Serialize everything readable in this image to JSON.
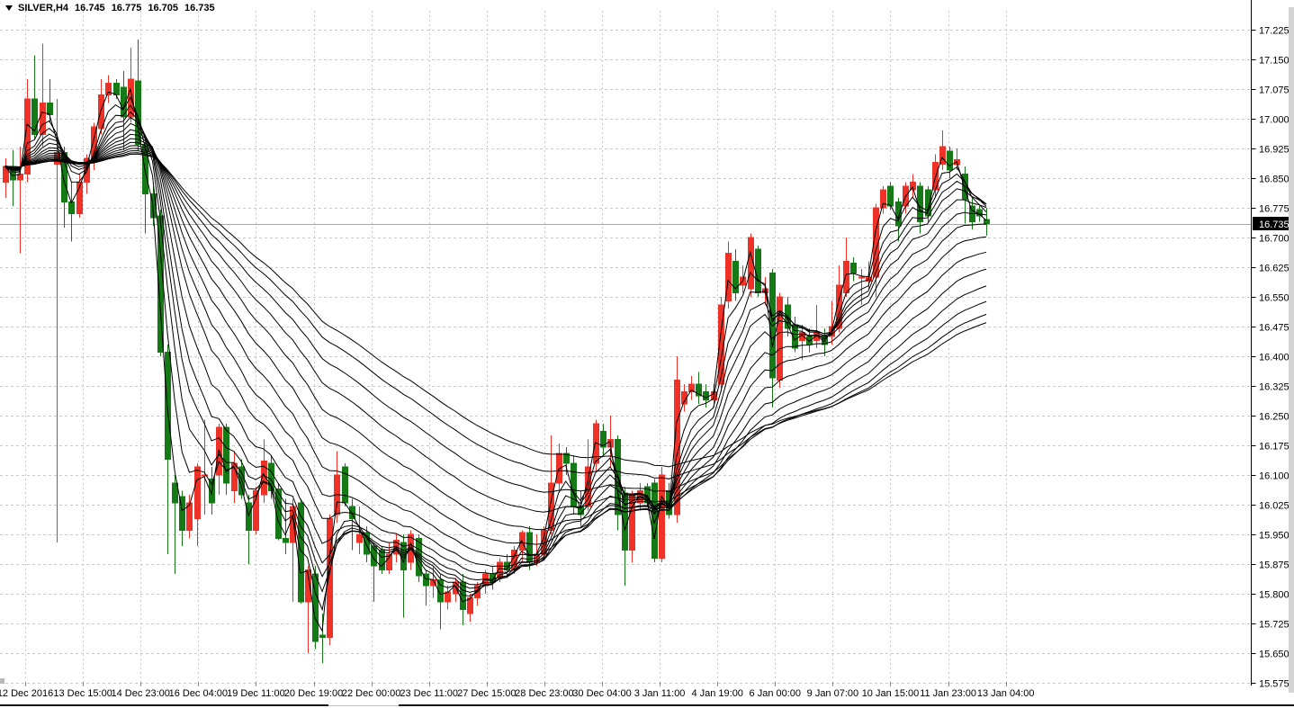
{
  "title": {
    "symbol": "SILVER,H4",
    "open": "16.745",
    "high": "16.775",
    "low": "16.705",
    "close": "16.735"
  },
  "chart_data": {
    "type": "candlestick",
    "symbol": "SILVER",
    "timeframe": "H4",
    "title": "SILVER,H4 16.745 16.775 16.705 16.735",
    "grid": "dotted",
    "legend_position": "none",
    "colors": {
      "bull_candle": "#ef3228",
      "bear_candle": "#157a15",
      "ma_line": "#000000",
      "grid": "#c9c9c9",
      "current_price_line": "#a8a8a8",
      "badge_bg": "#000000",
      "badge_text": "#ffffff",
      "axis_text": "#000000"
    },
    "y_axis": {
      "min": 15.575,
      "max": 17.225,
      "step": 0.075,
      "ticks": [
        "17.225",
        "17.150",
        "17.075",
        "17.000",
        "16.925",
        "16.850",
        "16.775",
        "16.700",
        "16.625",
        "16.550",
        "16.475",
        "16.400",
        "16.325",
        "16.250",
        "16.175",
        "16.100",
        "16.025",
        "15.950",
        "15.875",
        "15.800",
        "15.725",
        "15.650",
        "15.575"
      ],
      "current_price": "16.735"
    },
    "x_axis": {
      "labels": [
        "12 Dec 2016",
        "13 Dec 15:00",
        "14 Dec 23:00",
        "16 Dec 04:00",
        "19 Dec 11:00",
        "20 Dec 19:00",
        "22 Dec 00:00",
        "23 Dec 11:00",
        "27 Dec 15:00",
        "28 Dec 23:00",
        "30 Dec 04:00",
        "3 Jan 11:00",
        "4 Jan 19:00",
        "6 Jan 00:00",
        "9 Jan 07:00",
        "10 Jan 15:00",
        "11 Jan 23:00",
        "13 Jan 04:00"
      ]
    },
    "ma_overlay": {
      "kind": "ema_ribbon",
      "periods": [
        2,
        4,
        6,
        8,
        10,
        13,
        17,
        21,
        26,
        32,
        39,
        47,
        56,
        66,
        75
      ]
    },
    "candles": [
      [
        16.84,
        16.9,
        16.8,
        16.88
      ],
      [
        16.88,
        16.92,
        16.78,
        16.845
      ],
      [
        16.845,
        16.93,
        16.66,
        16.86
      ],
      [
        16.86,
        17.1,
        16.84,
        17.05
      ],
      [
        17.05,
        17.16,
        16.95,
        16.96
      ],
      [
        16.96,
        17.19,
        16.93,
        17.04
      ],
      [
        17.04,
        17.1,
        16.99,
        17.01
      ],
      [
        16.885,
        17.05,
        15.93,
        16.915
      ],
      [
        16.915,
        16.93,
        16.725,
        16.79
      ],
      [
        16.79,
        16.84,
        16.69,
        16.76
      ],
      [
        16.76,
        16.86,
        16.75,
        16.84
      ],
      [
        16.84,
        16.91,
        16.81,
        16.9
      ],
      [
        16.89,
        16.99,
        16.87,
        16.98
      ],
      [
        16.975,
        17.1,
        16.96,
        17.06
      ],
      [
        17.06,
        17.11,
        17.04,
        17.09
      ],
      [
        17.09,
        17.1,
        17.05,
        17.06
      ],
      [
        17.08,
        17.12,
        16.92,
        17.005
      ],
      [
        17.005,
        17.18,
        16.99,
        17.1
      ],
      [
        17.095,
        17.2,
        16.92,
        16.935
      ],
      [
        16.935,
        16.95,
        16.71,
        16.81
      ],
      [
        16.81,
        16.83,
        16.73,
        16.75
      ],
      [
        16.755,
        16.77,
        16.4,
        16.41
      ],
      [
        16.41,
        16.43,
        15.9,
        16.14
      ],
      [
        16.08,
        16.1,
        15.85,
        16.03
      ],
      [
        16.045,
        16.06,
        15.92,
        15.96
      ],
      [
        15.96,
        16.05,
        15.94,
        16.03
      ],
      [
        15.99,
        16.13,
        15.92,
        16.12
      ],
      [
        16.1,
        16.24,
        16.0,
        16.1
      ],
      [
        16.09,
        16.12,
        16.0,
        16.03
      ],
      [
        16.1,
        16.23,
        16.05,
        16.22
      ],
      [
        16.22,
        16.23,
        16.05,
        16.08
      ],
      [
        16.06,
        16.16,
        16.03,
        16.13
      ],
      [
        16.12,
        16.14,
        16.04,
        16.05
      ],
      [
        16.03,
        16.05,
        15.875,
        15.96
      ],
      [
        15.96,
        16.07,
        15.95,
        16.06
      ],
      [
        16.05,
        16.19,
        16.03,
        16.135
      ],
      [
        16.13,
        16.15,
        16.04,
        16.06
      ],
      [
        16.065,
        16.08,
        15.935,
        15.94
      ],
      [
        15.94,
        16.04,
        15.9,
        15.93
      ],
      [
        15.93,
        16.04,
        15.78,
        16.02
      ],
      [
        16.03,
        16.04,
        15.775,
        15.78
      ],
      [
        15.78,
        15.87,
        15.65,
        15.86
      ],
      [
        15.85,
        15.87,
        15.66,
        15.68
      ],
      [
        15.695,
        15.75,
        15.625,
        15.69
      ],
      [
        15.69,
        16.0,
        15.67,
        15.99
      ],
      [
        16.0,
        16.16,
        15.98,
        16.1
      ],
      [
        16.12,
        16.13,
        16.02,
        16.03
      ],
      [
        16.02,
        16.04,
        15.91,
        15.99
      ],
      [
        15.93,
        16.02,
        15.9,
        15.95
      ],
      [
        15.955,
        15.97,
        15.88,
        15.9
      ],
      [
        15.92,
        15.93,
        15.78,
        15.87
      ],
      [
        15.91,
        15.92,
        15.85,
        15.86
      ],
      [
        15.86,
        15.93,
        15.85,
        15.9
      ],
      [
        15.9,
        15.95,
        15.88,
        15.935
      ],
      [
        15.93,
        15.95,
        15.74,
        15.86
      ],
      [
        15.88,
        15.96,
        15.86,
        15.95
      ],
      [
        15.94,
        15.95,
        15.83,
        15.845
      ],
      [
        15.85,
        15.86,
        15.77,
        15.82
      ],
      [
        15.82,
        15.87,
        15.79,
        15.835
      ],
      [
        15.835,
        15.85,
        15.71,
        15.78
      ],
      [
        15.78,
        15.82,
        15.76,
        15.805
      ],
      [
        15.8,
        15.84,
        15.78,
        15.83
      ],
      [
        15.83,
        15.85,
        15.72,
        15.76
      ],
      [
        15.75,
        15.8,
        15.73,
        15.79
      ],
      [
        15.79,
        15.83,
        15.77,
        15.82
      ],
      [
        15.82,
        15.86,
        15.8,
        15.85
      ],
      [
        15.85,
        15.87,
        15.81,
        15.83
      ],
      [
        15.84,
        15.89,
        15.83,
        15.88
      ],
      [
        15.88,
        15.9,
        15.84,
        15.86
      ],
      [
        15.86,
        15.92,
        15.85,
        15.91
      ],
      [
        15.91,
        15.96,
        15.88,
        15.955
      ],
      [
        15.955,
        15.97,
        15.86,
        15.88
      ],
      [
        15.88,
        15.95,
        15.87,
        15.9
      ],
      [
        15.9,
        15.97,
        15.89,
        15.96
      ],
      [
        15.96,
        16.2,
        15.95,
        16.08
      ],
      [
        16.08,
        16.18,
        16.06,
        16.155
      ],
      [
        16.155,
        16.17,
        16.1,
        16.13
      ],
      [
        16.13,
        16.15,
        16.0,
        16.02
      ],
      [
        16.02,
        16.06,
        15.97,
        16.0
      ],
      [
        16.02,
        16.19,
        16.01,
        16.12
      ],
      [
        16.13,
        16.24,
        16.11,
        16.23
      ],
      [
        16.21,
        16.23,
        16.15,
        16.17
      ],
      [
        16.17,
        16.25,
        16.12,
        16.19
      ],
      [
        16.19,
        16.2,
        15.96,
        16.0
      ],
      [
        16.055,
        16.07,
        15.82,
        15.91
      ],
      [
        15.91,
        16.06,
        15.88,
        16.05
      ],
      [
        16.03,
        16.08,
        16.01,
        16.06
      ],
      [
        16.07,
        16.08,
        16.02,
        16.03
      ],
      [
        16.08,
        16.09,
        15.88,
        15.89
      ],
      [
        15.89,
        16.12,
        15.88,
        16.1
      ],
      [
        16.06,
        16.08,
        15.99,
        16.0
      ],
      [
        16.0,
        16.4,
        15.98,
        16.34
      ],
      [
        16.28,
        16.33,
        16.26,
        16.31
      ],
      [
        16.31,
        16.35,
        16.29,
        16.33
      ],
      [
        16.33,
        16.36,
        16.28,
        16.3
      ],
      [
        16.31,
        16.33,
        16.27,
        16.29
      ],
      [
        16.29,
        16.33,
        16.27,
        16.31
      ],
      [
        16.33,
        16.55,
        16.31,
        16.53
      ],
      [
        16.54,
        16.69,
        16.52,
        16.66
      ],
      [
        16.64,
        16.67,
        16.54,
        16.56
      ],
      [
        16.58,
        16.63,
        16.56,
        16.6
      ],
      [
        16.57,
        16.71,
        16.55,
        16.7
      ],
      [
        16.67,
        16.68,
        16.55,
        16.56
      ],
      [
        16.56,
        16.6,
        16.53,
        16.57
      ],
      [
        16.61,
        16.62,
        16.27,
        16.345
      ],
      [
        16.34,
        16.56,
        16.32,
        16.55
      ],
      [
        16.53,
        16.55,
        16.45,
        16.47
      ],
      [
        16.48,
        16.5,
        16.41,
        16.42
      ],
      [
        16.44,
        16.48,
        16.39,
        16.46
      ],
      [
        16.45,
        16.47,
        16.41,
        16.43
      ],
      [
        16.44,
        16.53,
        16.42,
        16.46
      ],
      [
        16.45,
        16.47,
        16.4,
        16.43
      ],
      [
        16.45,
        16.54,
        16.43,
        16.475
      ],
      [
        16.47,
        16.63,
        16.46,
        16.58
      ],
      [
        16.56,
        16.7,
        16.55,
        16.64
      ],
      [
        16.635,
        16.65,
        16.59,
        16.61
      ],
      [
        16.6,
        16.62,
        16.53,
        16.6
      ],
      [
        16.59,
        16.64,
        16.57,
        16.6
      ],
      [
        16.6,
        16.785,
        16.55,
        16.775
      ],
      [
        16.775,
        16.83,
        16.76,
        16.82
      ],
      [
        16.83,
        16.84,
        16.77,
        16.78
      ],
      [
        16.79,
        16.8,
        16.69,
        16.73
      ],
      [
        16.78,
        16.84,
        16.76,
        16.83
      ],
      [
        16.82,
        16.86,
        16.8,
        16.84
      ],
      [
        16.83,
        16.84,
        16.71,
        16.74
      ],
      [
        16.82,
        16.83,
        16.74,
        16.755
      ],
      [
        16.82,
        16.91,
        16.8,
        16.89
      ],
      [
        16.885,
        16.97,
        16.87,
        16.93
      ],
      [
        16.918,
        16.93,
        16.85,
        16.87
      ],
      [
        16.884,
        16.925,
        16.87,
        16.897
      ],
      [
        16.86,
        16.88,
        16.735,
        16.795
      ],
      [
        16.78,
        16.8,
        16.72,
        16.74
      ],
      [
        16.77,
        16.78,
        16.74,
        16.755
      ],
      [
        16.745,
        16.775,
        16.705,
        16.735
      ]
    ]
  }
}
